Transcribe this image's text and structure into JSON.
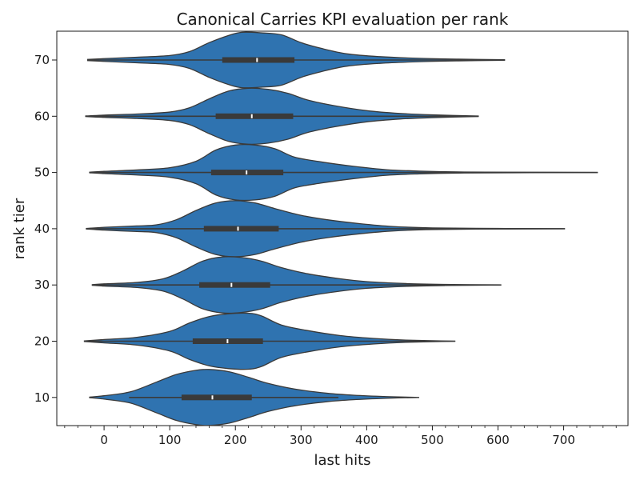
{
  "chart_data": {
    "type": "violin",
    "orientation": "horizontal",
    "title": "Canonical Carries KPI evaluation per rank",
    "xlabel": "last hits",
    "ylabel": "rank tier",
    "xlim": [
      -72,
      798
    ],
    "xticks": [
      0,
      100,
      200,
      300,
      400,
      500,
      600,
      700
    ],
    "xminor_step": 20,
    "color": "#2f73b0",
    "edge_color": "#3a3a3a",
    "categories": [
      "70",
      "60",
      "50",
      "40",
      "30",
      "20",
      "10"
    ],
    "series": [
      {
        "tier": "70",
        "min": -25,
        "q1": 180,
        "median": 233,
        "q3": 290,
        "max": 610,
        "whisker_low": -25,
        "whisker_high": 610,
        "density": [
          [
            -25,
            0.02
          ],
          [
            0,
            0.05
          ],
          [
            50,
            0.1
          ],
          [
            100,
            0.16
          ],
          [
            130,
            0.3
          ],
          [
            160,
            0.62
          ],
          [
            190,
            0.88
          ],
          [
            210,
            0.99
          ],
          [
            240,
            0.97
          ],
          [
            270,
            0.9
          ],
          [
            300,
            0.62
          ],
          [
            330,
            0.42
          ],
          [
            370,
            0.22
          ],
          [
            420,
            0.12
          ],
          [
            480,
            0.06
          ],
          [
            540,
            0.03
          ],
          [
            610,
            0.01
          ]
        ]
      },
      {
        "tier": "60",
        "min": -28,
        "q1": 170,
        "median": 225,
        "q3": 288,
        "max": 570,
        "whisker_low": -28,
        "whisker_high": 570,
        "density": [
          [
            -28,
            0.01
          ],
          [
            0,
            0.04
          ],
          [
            50,
            0.08
          ],
          [
            100,
            0.15
          ],
          [
            130,
            0.3
          ],
          [
            160,
            0.62
          ],
          [
            190,
            0.9
          ],
          [
            220,
            1.0
          ],
          [
            250,
            0.96
          ],
          [
            280,
            0.82
          ],
          [
            310,
            0.58
          ],
          [
            350,
            0.38
          ],
          [
            400,
            0.2
          ],
          [
            450,
            0.1
          ],
          [
            500,
            0.05
          ],
          [
            570,
            0.01
          ]
        ]
      },
      {
        "tier": "50",
        "min": -22,
        "q1": 163,
        "median": 217,
        "q3": 273,
        "max": 752,
        "whisker_low": -22,
        "whisker_high": 752,
        "density": [
          [
            -22,
            0.01
          ],
          [
            0,
            0.04
          ],
          [
            50,
            0.09
          ],
          [
            100,
            0.17
          ],
          [
            140,
            0.4
          ],
          [
            170,
            0.8
          ],
          [
            200,
            0.98
          ],
          [
            230,
            0.98
          ],
          [
            260,
            0.85
          ],
          [
            290,
            0.55
          ],
          [
            330,
            0.38
          ],
          [
            380,
            0.22
          ],
          [
            430,
            0.1
          ],
          [
            480,
            0.05
          ],
          [
            540,
            0.02
          ],
          [
            620,
            0.01
          ],
          [
            752,
            0.0
          ]
        ]
      },
      {
        "tier": "40",
        "min": -27,
        "q1": 152,
        "median": 204,
        "q3": 266,
        "max": 702,
        "whisker_low": -27,
        "whisker_high": 702,
        "density": [
          [
            -27,
            0.01
          ],
          [
            0,
            0.05
          ],
          [
            50,
            0.1
          ],
          [
            80,
            0.14
          ],
          [
            110,
            0.32
          ],
          [
            140,
            0.65
          ],
          [
            170,
            0.92
          ],
          [
            200,
            1.0
          ],
          [
            230,
            0.92
          ],
          [
            260,
            0.72
          ],
          [
            300,
            0.48
          ],
          [
            340,
            0.32
          ],
          [
            390,
            0.18
          ],
          [
            440,
            0.08
          ],
          [
            500,
            0.03
          ],
          [
            600,
            0.01
          ],
          [
            702,
            0.0
          ]
        ]
      },
      {
        "tier": "30",
        "min": -18,
        "q1": 145,
        "median": 194,
        "q3": 253,
        "max": 605,
        "whisker_low": -18,
        "whisker_high": 605,
        "density": [
          [
            -18,
            0.01
          ],
          [
            0,
            0.04
          ],
          [
            50,
            0.09
          ],
          [
            90,
            0.22
          ],
          [
            120,
            0.5
          ],
          [
            150,
            0.85
          ],
          [
            180,
            1.0
          ],
          [
            210,
            0.98
          ],
          [
            240,
            0.85
          ],
          [
            270,
            0.62
          ],
          [
            310,
            0.4
          ],
          [
            360,
            0.22
          ],
          [
            400,
            0.12
          ],
          [
            460,
            0.05
          ],
          [
            520,
            0.02
          ],
          [
            605,
            0.0
          ]
        ]
      },
      {
        "tier": "20",
        "min": -30,
        "q1": 135,
        "median": 188,
        "q3": 242,
        "max": 535,
        "whisker_low": -30,
        "whisker_high": 535,
        "density": [
          [
            -30,
            0.01
          ],
          [
            0,
            0.06
          ],
          [
            50,
            0.14
          ],
          [
            100,
            0.35
          ],
          [
            130,
            0.65
          ],
          [
            160,
            0.88
          ],
          [
            190,
            0.98
          ],
          [
            220,
            1.0
          ],
          [
            240,
            0.9
          ],
          [
            270,
            0.58
          ],
          [
            310,
            0.38
          ],
          [
            360,
            0.2
          ],
          [
            410,
            0.1
          ],
          [
            460,
            0.04
          ],
          [
            535,
            0.0
          ]
        ]
      },
      {
        "tier": "10",
        "min": -22,
        "q1": 118,
        "median": 165,
        "q3": 225,
        "max": 480,
        "whisker_low": 38,
        "whisker_high": 357,
        "density": [
          [
            -22,
            0.01
          ],
          [
            0,
            0.06
          ],
          [
            40,
            0.2
          ],
          [
            80,
            0.55
          ],
          [
            110,
            0.82
          ],
          [
            140,
            0.97
          ],
          [
            160,
            1.0
          ],
          [
            190,
            0.92
          ],
          [
            220,
            0.72
          ],
          [
            250,
            0.5
          ],
          [
            290,
            0.3
          ],
          [
            340,
            0.15
          ],
          [
            380,
            0.08
          ],
          [
            430,
            0.03
          ],
          [
            480,
            0.0
          ]
        ]
      }
    ]
  }
}
